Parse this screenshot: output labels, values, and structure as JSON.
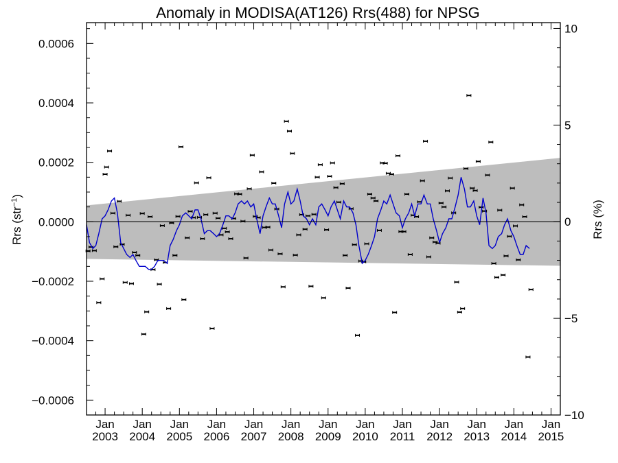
{
  "chart_data": {
    "type": "scatter",
    "title": "Anomaly in MODISA(AT126) Rrs(488) for NPSG",
    "ylabel_left": {
      "base": "Rrs (str",
      "sup": "−1",
      "tail": ")"
    },
    "ylabel_right": "Rrs (%)",
    "x_range": [
      2002.5,
      2015.25
    ],
    "ylim": [
      -0.00065,
      0.00067
    ],
    "ylim_right": [
      -10,
      10.3
    ],
    "y_ticks": [
      {
        "value": 0.0006,
        "label": "0.0006"
      },
      {
        "value": 0.0004,
        "label": "0.0004"
      },
      {
        "value": 0.0002,
        "label": "0.0002"
      },
      {
        "value": 0.0,
        "label": "0.0000"
      },
      {
        "value": -0.0002,
        "label": "−0.0002"
      },
      {
        "value": -0.0004,
        "label": "−0.0004"
      },
      {
        "value": -0.0006,
        "label": "−0.0006"
      }
    ],
    "y_ticks_right": [
      {
        "value": 10,
        "label": "10"
      },
      {
        "value": 5,
        "label": "5"
      },
      {
        "value": 0,
        "label": "0"
      },
      {
        "value": -5,
        "label": "−5"
      },
      {
        "value": -10,
        "label": "−10"
      }
    ],
    "x_ticks": [
      {
        "value": 2003.0,
        "month": "Jan",
        "year": "2003"
      },
      {
        "value": 2004.0,
        "month": "Jan",
        "year": "2004"
      },
      {
        "value": 2005.0,
        "month": "Jan",
        "year": "2005"
      },
      {
        "value": 2006.0,
        "month": "Jan",
        "year": "2006"
      },
      {
        "value": 2007.0,
        "month": "Jan",
        "year": "2007"
      },
      {
        "value": 2008.0,
        "month": "Jan",
        "year": "2008"
      },
      {
        "value": 2009.0,
        "month": "Jan",
        "year": "2009"
      },
      {
        "value": 2010.0,
        "month": "Jan",
        "year": "2010"
      },
      {
        "value": 2011.0,
        "month": "Jan",
        "year": "2011"
      },
      {
        "value": 2012.0,
        "month": "Jan",
        "year": "2012"
      },
      {
        "value": 2013.0,
        "month": "Jan",
        "year": "2013"
      },
      {
        "value": 2014.0,
        "month": "Jan",
        "year": "2014"
      },
      {
        "value": 2015.0,
        "month": "Jan",
        "year": "2015"
      }
    ],
    "band": {
      "start": [
        2002.5,
        5.5e-05,
        -0.000125
      ],
      "end": [
        2015.25,
        0.000215,
        -0.000148
      ]
    },
    "colors": {
      "band": "#bdbdbd",
      "line": "#0000cc",
      "points": "#000000",
      "axis": "#000000"
    },
    "grid": false,
    "legend": "none",
    "points": [
      [
        2002.54,
        -9.8e-05
      ],
      [
        2002.62,
        -8.5e-05
      ],
      [
        2002.71,
        -9.7e-05
      ],
      [
        2002.83,
        -0.000272
      ],
      [
        2002.92,
        -0.000192
      ],
      [
        2003.0,
        0.00016
      ],
      [
        2003.04,
        0.000184
      ],
      [
        2003.12,
        0.000238
      ],
      [
        2003.21,
        2.9e-05
      ],
      [
        2003.29,
        -8.4e-05
      ],
      [
        2003.38,
        6.9e-05
      ],
      [
        2003.46,
        -7.6e-05
      ],
      [
        2003.54,
        -0.000204
      ],
      [
        2003.62,
        2.2e-05
      ],
      [
        2003.71,
        -0.000208
      ],
      [
        2003.79,
        -0.000103
      ],
      [
        2003.88,
        -0.000113
      ],
      [
        2004.0,
        2.8e-05
      ],
      [
        2004.04,
        -0.000378
      ],
      [
        2004.12,
        -0.000303
      ],
      [
        2004.21,
        1.7e-05
      ],
      [
        2004.29,
        -0.000161
      ],
      [
        2004.38,
        -0.000128
      ],
      [
        2004.46,
        -0.00021
      ],
      [
        2004.54,
        -1.3e-05
      ],
      [
        2004.62,
        -0.000137
      ],
      [
        2004.71,
        -0.000292
      ],
      [
        2004.79,
        -4e-06
      ],
      [
        2004.88,
        -0.000113
      ],
      [
        2004.96,
        1.8e-05
      ],
      [
        2005.04,
        0.000252
      ],
      [
        2005.12,
        -0.000262
      ],
      [
        2005.21,
        -5.4e-05
      ],
      [
        2005.29,
        3.5e-05
      ],
      [
        2005.38,
        1.4e-05
      ],
      [
        2005.46,
        0.000131
      ],
      [
        2005.54,
        1.5e-05
      ],
      [
        2005.62,
        -5.7e-05
      ],
      [
        2005.71,
        2.4e-05
      ],
      [
        2005.79,
        0.000148
      ],
      [
        2005.88,
        -0.000359
      ],
      [
        2005.96,
        2.9e-05
      ],
      [
        2006.04,
        1.2e-05
      ],
      [
        2006.12,
        -4.4e-05
      ],
      [
        2006.21,
        -2.2e-05
      ],
      [
        2006.29,
        -3.4e-05
      ],
      [
        2006.38,
        -5.7e-05
      ],
      [
        2006.46,
        1.1e-05
      ],
      [
        2006.54,
        9.4e-05
      ],
      [
        2006.62,
        9.3e-05
      ],
      [
        2006.71,
        2e-06
      ],
      [
        2006.79,
        -0.000122
      ],
      [
        2006.88,
        0.000111
      ],
      [
        2006.96,
        0.000224
      ],
      [
        2007.04,
        1.8e-05
      ],
      [
        2007.12,
        1.4e-05
      ],
      [
        2007.21,
        0.000168
      ],
      [
        2007.29,
        -1.9e-05
      ],
      [
        2007.38,
        -1.8e-05
      ],
      [
        2007.46,
        -9.5e-05
      ],
      [
        2007.54,
        0.00013
      ],
      [
        2007.62,
        4.3e-05
      ],
      [
        2007.71,
        -0.000108
      ],
      [
        2007.79,
        -0.000219
      ],
      [
        2007.88,
        0.000338
      ],
      [
        2007.96,
        0.000305
      ],
      [
        2008.04,
        0.00023
      ],
      [
        2008.12,
        -0.000112
      ],
      [
        2008.21,
        -4.4e-05
      ],
      [
        2008.29,
        2.4e-05
      ],
      [
        2008.38,
        -2.5e-05
      ],
      [
        2008.46,
        2e-05
      ],
      [
        2008.54,
        -0.000217
      ],
      [
        2008.62,
        2.5e-05
      ],
      [
        2008.71,
        0.00015
      ],
      [
        2008.79,
        0.000192
      ],
      [
        2008.88,
        -0.000256
      ],
      [
        2008.96,
        -2.7e-05
      ],
      [
        2009.04,
        0.000153
      ],
      [
        2009.12,
        0.000198
      ],
      [
        2009.21,
        0.000115
      ],
      [
        2009.29,
        6.6e-05
      ],
      [
        2009.38,
        0.000128
      ],
      [
        2009.46,
        -0.000113
      ],
      [
        2009.54,
        -0.000223
      ],
      [
        2009.62,
        4.4e-05
      ],
      [
        2009.71,
        -7.7e-05
      ],
      [
        2009.79,
        -0.000382
      ],
      [
        2009.88,
        -0.000132
      ],
      [
        2009.96,
        -0.000135
      ],
      [
        2010.04,
        -7.4e-05
      ],
      [
        2010.12,
        9.3e-05
      ],
      [
        2010.21,
        8e-05
      ],
      [
        2010.29,
        7e-05
      ],
      [
        2010.38,
        -2.9e-05
      ],
      [
        2010.46,
        0.000198
      ],
      [
        2010.54,
        0.000197
      ],
      [
        2010.62,
        0.000163
      ],
      [
        2010.71,
        0.00016
      ],
      [
        2010.79,
        -0.000305
      ],
      [
        2010.88,
        0.000222
      ],
      [
        2010.96,
        -3.3e-05
      ],
      [
        2011.04,
        -3.3e-05
      ],
      [
        2011.12,
        9.3e-05
      ],
      [
        2011.21,
        -0.00011
      ],
      [
        2011.29,
        2.2e-05
      ],
      [
        2011.38,
        1.7e-05
      ],
      [
        2011.46,
        6.7e-05
      ],
      [
        2011.54,
        0.000138
      ],
      [
        2011.62,
        0.000271
      ],
      [
        2011.71,
        -0.000118
      ],
      [
        2011.79,
        -5.4e-05
      ],
      [
        2011.88,
        -6.8e-05
      ],
      [
        2011.96,
        -7.2e-05
      ],
      [
        2012.04,
        6.3e-05
      ],
      [
        2012.12,
        5e-05
      ],
      [
        2012.21,
        0.000104
      ],
      [
        2012.29,
        0.000147
      ],
      [
        2012.38,
        3e-05
      ],
      [
        2012.46,
        -0.000203
      ],
      [
        2012.54,
        -0.000304
      ],
      [
        2012.62,
        -0.000292
      ],
      [
        2012.71,
        0.000179
      ],
      [
        2012.79,
        0.000425
      ],
      [
        2012.88,
        0.000113
      ],
      [
        2012.96,
        0.000105
      ],
      [
        2013.04,
        0.000203
      ],
      [
        2013.12,
        4.9e-05
      ],
      [
        2013.21,
        3.6e-05
      ],
      [
        2013.29,
        0.000157
      ],
      [
        2013.38,
        0.000268
      ],
      [
        2013.46,
        -0.00014
      ],
      [
        2013.54,
        -0.000187
      ],
      [
        2013.62,
        3.9e-05
      ],
      [
        2013.71,
        -0.000179
      ],
      [
        2013.79,
        -0.000115
      ],
      [
        2013.88,
        -4.9e-05
      ],
      [
        2013.96,
        0.000113
      ],
      [
        2014.04,
        -1.4e-05
      ],
      [
        2014.12,
        -0.000128
      ],
      [
        2014.21,
        5.7e-05
      ],
      [
        2014.29,
        1.7e-05
      ],
      [
        2014.38,
        -0.000455
      ],
      [
        2014.46,
        -0.000228
      ]
    ],
    "line": [
      [
        2002.5,
        -1e-05
      ],
      [
        2002.58,
        -7e-05
      ],
      [
        2002.67,
        -9e-05
      ],
      [
        2002.75,
        -8e-05
      ],
      [
        2002.83,
        -4e-05
      ],
      [
        2002.92,
        1e-05
      ],
      [
        2003.0,
        2e-05
      ],
      [
        2003.08,
        4e-05
      ],
      [
        2003.17,
        7e-05
      ],
      [
        2003.25,
        8e-05
      ],
      [
        2003.33,
        3e-05
      ],
      [
        2003.42,
        -7e-05
      ],
      [
        2003.5,
        -9e-05
      ],
      [
        2003.58,
        -0.00011
      ],
      [
        2003.67,
        -0.00012
      ],
      [
        2003.75,
        -0.00011
      ],
      [
        2003.83,
        -0.00013
      ],
      [
        2003.92,
        -0.00015
      ],
      [
        2004.0,
        -0.00015
      ],
      [
        2004.08,
        -0.00015
      ],
      [
        2004.17,
        -0.00016
      ],
      [
        2004.25,
        -0.00016
      ],
      [
        2004.33,
        -0.00015
      ],
      [
        2004.42,
        -0.00013
      ],
      [
        2004.5,
        -0.00013
      ],
      [
        2004.58,
        -0.00013
      ],
      [
        2004.67,
        -0.00014
      ],
      [
        2004.75,
        -8e-05
      ],
      [
        2004.83,
        -6e-05
      ],
      [
        2004.92,
        -3e-05
      ],
      [
        2005.0,
        -1e-05
      ],
      [
        2005.08,
        2e-05
      ],
      [
        2005.17,
        3e-05
      ],
      [
        2005.25,
        2e-05
      ],
      [
        2005.33,
        1e-05
      ],
      [
        2005.42,
        4e-05
      ],
      [
        2005.5,
        4e-05
      ],
      [
        2005.58,
        1e-05
      ],
      [
        2005.67,
        -4e-05
      ],
      [
        2005.75,
        -3e-05
      ],
      [
        2005.83,
        -3e-05
      ],
      [
        2005.92,
        -4e-05
      ],
      [
        2006.0,
        -5e-05
      ],
      [
        2006.08,
        -4e-05
      ],
      [
        2006.17,
        -1e-05
      ],
      [
        2006.25,
        2e-05
      ],
      [
        2006.33,
        2e-05
      ],
      [
        2006.42,
        1e-05
      ],
      [
        2006.5,
        3e-05
      ],
      [
        2006.58,
        6e-05
      ],
      [
        2006.67,
        7e-05
      ],
      [
        2006.75,
        6e-05
      ],
      [
        2006.83,
        7e-05
      ],
      [
        2006.92,
        5e-05
      ],
      [
        2007.0,
        6e-05
      ],
      [
        2007.08,
        1e-05
      ],
      [
        2007.17,
        -4e-05
      ],
      [
        2007.25,
        2e-05
      ],
      [
        2007.33,
        5e-05
      ],
      [
        2007.42,
        8e-05
      ],
      [
        2007.5,
        6e-05
      ],
      [
        2007.58,
        6e-05
      ],
      [
        2007.67,
        2e-05
      ],
      [
        2007.75,
        -2e-05
      ],
      [
        2007.83,
        6e-05
      ],
      [
        2007.92,
        0.0001
      ],
      [
        2008.0,
        6e-05
      ],
      [
        2008.08,
        7e-05
      ],
      [
        2008.17,
        0.00011
      ],
      [
        2008.25,
        7e-05
      ],
      [
        2008.33,
        2e-05
      ],
      [
        2008.42,
        1e-05
      ],
      [
        2008.5,
        -1e-05
      ],
      [
        2008.58,
        1e-05
      ],
      [
        2008.67,
        -1e-05
      ],
      [
        2008.75,
        5e-05
      ],
      [
        2008.83,
        6e-05
      ],
      [
        2008.92,
        4e-05
      ],
      [
        2009.0,
        2e-05
      ],
      [
        2009.08,
        5e-05
      ],
      [
        2009.17,
        7e-05
      ],
      [
        2009.25,
        4e-05
      ],
      [
        2009.33,
        1e-05
      ],
      [
        2009.42,
        7e-05
      ],
      [
        2009.5,
        5e-05
      ],
      [
        2009.58,
        5e-05
      ],
      [
        2009.67,
        3e-05
      ],
      [
        2009.75,
        -1e-05
      ],
      [
        2009.83,
        -8e-05
      ],
      [
        2009.92,
        -0.00014
      ],
      [
        2010.0,
        -0.00013
      ],
      [
        2010.08,
        -0.00011
      ],
      [
        2010.17,
        -8e-05
      ],
      [
        2010.25,
        -5e-05
      ],
      [
        2010.33,
        1e-05
      ],
      [
        2010.42,
        4e-05
      ],
      [
        2010.5,
        7e-05
      ],
      [
        2010.58,
        6e-05
      ],
      [
        2010.67,
        9e-05
      ],
      [
        2010.75,
        6e-05
      ],
      [
        2010.83,
        3e-05
      ],
      [
        2010.92,
        2e-05
      ],
      [
        2011.0,
        -2e-05
      ],
      [
        2011.08,
        1e-05
      ],
      [
        2011.17,
        3e-05
      ],
      [
        2011.25,
        6e-05
      ],
      [
        2011.33,
        2e-05
      ],
      [
        2011.42,
        6e-05
      ],
      [
        2011.5,
        6e-05
      ],
      [
        2011.58,
        9e-05
      ],
      [
        2011.67,
        6e-05
      ],
      [
        2011.75,
        6e-05
      ],
      [
        2011.83,
        1e-05
      ],
      [
        2011.92,
        -3e-05
      ],
      [
        2012.0,
        -7e-05
      ],
      [
        2012.08,
        -4e-05
      ],
      [
        2012.17,
        -2e-05
      ],
      [
        2012.25,
        1e-05
      ],
      [
        2012.33,
        1e-05
      ],
      [
        2012.42,
        5e-05
      ],
      [
        2012.5,
        9e-05
      ],
      [
        2012.58,
        0.00015
      ],
      [
        2012.67,
        0.00011
      ],
      [
        2012.75,
        5e-05
      ],
      [
        2012.83,
        5e-05
      ],
      [
        2012.92,
        7e-05
      ],
      [
        2013.0,
        2e-05
      ],
      [
        2013.08,
        -1e-05
      ],
      [
        2013.17,
        8e-05
      ],
      [
        2013.25,
        3e-05
      ],
      [
        2013.33,
        -8e-05
      ],
      [
        2013.42,
        -9e-05
      ],
      [
        2013.5,
        -8e-05
      ],
      [
        2013.58,
        -5e-05
      ],
      [
        2013.67,
        -4e-05
      ],
      [
        2013.75,
        -1e-05
      ],
      [
        2013.83,
        1e-05
      ],
      [
        2013.92,
        -3e-05
      ],
      [
        2014.0,
        -5e-05
      ],
      [
        2014.08,
        -8e-05
      ],
      [
        2014.17,
        -0.00011
      ],
      [
        2014.25,
        -0.00011
      ],
      [
        2014.33,
        -8e-05
      ],
      [
        2014.42,
        -9e-05
      ]
    ]
  }
}
